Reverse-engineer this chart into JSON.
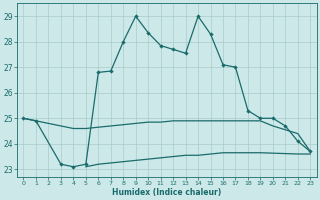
{
  "xlabel": "Humidex (Indice chaleur)",
  "xlim": [
    -0.5,
    23.5
  ],
  "ylim": [
    22.7,
    29.5
  ],
  "xticks": [
    0,
    1,
    2,
    3,
    4,
    5,
    6,
    7,
    8,
    9,
    10,
    11,
    12,
    13,
    14,
    15,
    16,
    17,
    18,
    19,
    20,
    21,
    22,
    23
  ],
  "yticks": [
    23,
    24,
    25,
    26,
    27,
    28,
    29
  ],
  "bg_color": "#cde8e8",
  "line_color": "#1a6b6b",
  "grid_color": "#aacccc",
  "line1_x": [
    0,
    1,
    3,
    4,
    5,
    6,
    7,
    8,
    9,
    10,
    11,
    12,
    13,
    14,
    15,
    16,
    17,
    18,
    19,
    20,
    21,
    22,
    23
  ],
  "line1_y": [
    25.0,
    24.9,
    23.2,
    23.1,
    23.2,
    26.8,
    26.85,
    28.0,
    29.0,
    28.35,
    27.85,
    27.7,
    27.55,
    29.0,
    28.3,
    27.1,
    27.0,
    25.3,
    25.0,
    25.0,
    24.7,
    24.1,
    23.7
  ],
  "line2_x": [
    0,
    4,
    5,
    6,
    7,
    8,
    9,
    10,
    11,
    12,
    13,
    14,
    15,
    16,
    17,
    18,
    19,
    20,
    22,
    23
  ],
  "line2_y": [
    25.0,
    24.6,
    24.6,
    24.65,
    24.7,
    24.75,
    24.8,
    24.85,
    24.85,
    24.9,
    24.9,
    24.9,
    24.9,
    24.9,
    24.9,
    24.9,
    24.9,
    24.7,
    24.4,
    23.7
  ],
  "line3_x": [
    5,
    6,
    7,
    8,
    9,
    10,
    11,
    12,
    13,
    14,
    15,
    16,
    17,
    18,
    19,
    22,
    23
  ],
  "line3_y": [
    23.1,
    23.2,
    23.25,
    23.3,
    23.35,
    23.4,
    23.45,
    23.5,
    23.55,
    23.55,
    23.6,
    23.65,
    23.65,
    23.65,
    23.65,
    23.6,
    23.6
  ]
}
